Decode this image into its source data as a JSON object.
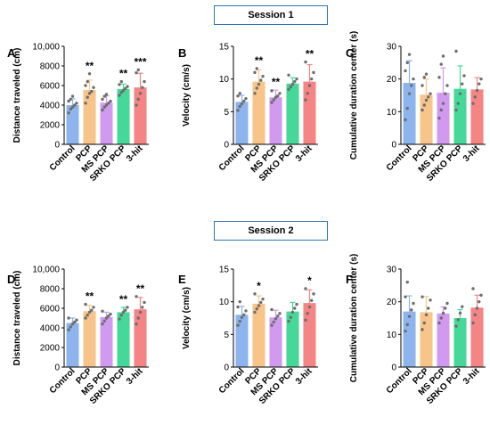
{
  "sessions": {
    "s1": "Session 1",
    "s2": "Session 2"
  },
  "colors": [
    "#8db4ec",
    "#f8c48a",
    "#d19af0",
    "#45d898",
    "#f58585"
  ],
  "chart_data": [
    {
      "id": "A",
      "session": "Session 1",
      "type": "bar",
      "categories": [
        "Control",
        "PCP",
        "MS PCP",
        "SRKO PCP",
        "3-hit"
      ],
      "values": [
        4000,
        5550,
        4250,
        5650,
        5800
      ],
      "errors": [
        650,
        1000,
        700,
        500,
        1450
      ],
      "significance": [
        "",
        "**",
        "",
        "**",
        "***"
      ],
      "points": [
        [
          3200,
          3600,
          3800,
          4000,
          4200,
          4400,
          4600,
          4900
        ],
        [
          4200,
          4800,
          5200,
          5400,
          5800,
          6000,
          6400,
          7200
        ],
        [
          3500,
          3800,
          4000,
          4200,
          4400,
          4600,
          4900,
          5100
        ],
        [
          5000,
          5300,
          5500,
          5700,
          5900,
          6100,
          6400
        ],
        [
          4000,
          4600,
          5200,
          5800,
          6400,
          7300,
          7600
        ]
      ],
      "ylabel": "Distance traveled (cm)",
      "ylim": [
        0,
        10000
      ],
      "yticks": [
        0,
        2000,
        4000,
        6000,
        8000,
        10000
      ],
      "ytick_labels": [
        "0",
        "2000",
        "4000",
        "6000",
        "8000",
        "10,000"
      ]
    },
    {
      "id": "B",
      "session": "Session 1",
      "type": "bar",
      "categories": [
        "Control",
        "PCP",
        "MS PCP",
        "SRKO PCP",
        "3-hit"
      ],
      "values": [
        6.5,
        9.6,
        7.2,
        9.3,
        9.6
      ],
      "errors": [
        1.0,
        1.8,
        1.1,
        0.9,
        2.6
      ],
      "significance": [
        "",
        "**",
        "**",
        "",
        "**"
      ],
      "points": [
        [
          5.2,
          5.8,
          6.2,
          6.6,
          7.0,
          7.4,
          7.8
        ],
        [
          7.8,
          8.6,
          9.2,
          9.8,
          10.4,
          11.0,
          11.6
        ],
        [
          6.4,
          6.8,
          7.2,
          7.4,
          7.8,
          8.2
        ],
        [
          8.4,
          8.8,
          9.2,
          9.6,
          10.0,
          10.6
        ],
        [
          6.8,
          7.8,
          9.0,
          10.0,
          11.0,
          12.6
        ]
      ],
      "ylabel": "Velocity (cm/s)",
      "ylim": [
        0,
        15
      ],
      "yticks": [
        0,
        5,
        10,
        15
      ],
      "ytick_labels": [
        "0",
        "5",
        "10",
        "15"
      ]
    },
    {
      "id": "C",
      "session": "Session 1",
      "type": "bar",
      "categories": [
        "Control",
        "PCP",
        "MS PCP",
        "SRKO PCP",
        "3-hit"
      ],
      "values": [
        18.8,
        15.2,
        15.8,
        17.0,
        16.8
      ],
      "errors": [
        6.8,
        4.8,
        7.6,
        7.0,
        3.6
      ],
      "significance": [
        "",
        "",
        "",
        "",
        ""
      ],
      "points": [
        [
          7.5,
          11.0,
          15.5,
          18.0,
          20.0,
          22.5,
          25.0,
          27.5
        ],
        [
          10.5,
          12.0,
          13.5,
          14.5,
          15.5,
          18.0,
          20.5,
          21.5
        ],
        [
          8.0,
          10.5,
          12.5,
          15.5,
          18.0,
          20.5,
          24.5,
          27.0
        ],
        [
          10.5,
          12.5,
          15.5,
          18.5,
          21.0,
          28.5
        ],
        [
          12.5,
          14.5,
          16.5,
          18.5,
          20.0
        ]
      ],
      "ylabel": "Cumulative duration center (s)",
      "ylim": [
        0,
        30
      ],
      "yticks": [
        0,
        10,
        20,
        30
      ],
      "ytick_labels": [
        "0",
        "10",
        "20",
        "30"
      ]
    },
    {
      "id": "D",
      "session": "Session 2",
      "type": "bar",
      "categories": [
        "Control",
        "PCP",
        "MS PCP",
        "SRKO PCP",
        "3-hit"
      ],
      "values": [
        4500,
        5700,
        5100,
        5600,
        5900
      ],
      "errors": [
        500,
        600,
        500,
        500,
        1200
      ],
      "significance": [
        "",
        "**",
        "",
        "**",
        "**"
      ],
      "points": [
        [
          3800,
          4100,
          4400,
          4600,
          4800,
          5000
        ],
        [
          5000,
          5300,
          5600,
          5800,
          6100,
          6400
        ],
        [
          4400,
          4700,
          5000,
          5200,
          5400,
          5700
        ],
        [
          4900,
          5300,
          5600,
          5800,
          6100
        ],
        [
          4400,
          5000,
          5600,
          6100,
          6600,
          7200
        ]
      ],
      "ylabel": "Distance traveled (cm)",
      "ylim": [
        0,
        10000
      ],
      "yticks": [
        0,
        2000,
        4000,
        6000,
        8000,
        10000
      ],
      "ytick_labels": [
        "0",
        "2000",
        "4000",
        "6000",
        "8000",
        "10,000"
      ]
    },
    {
      "id": "E",
      "session": "Session 2",
      "type": "bar",
      "categories": [
        "Control",
        "PCP",
        "MS PCP",
        "SRKO PCP",
        "3-hit"
      ],
      "values": [
        8.0,
        9.7,
        7.6,
        8.5,
        9.8
      ],
      "errors": [
        1.3,
        1.2,
        1.1,
        1.4,
        2.0
      ],
      "significance": [
        "",
        "*",
        "",
        "",
        "*"
      ],
      "points": [
        [
          6.4,
          7.0,
          7.6,
          8.0,
          8.6,
          9.2,
          10.0
        ],
        [
          8.4,
          8.9,
          9.4,
          9.9,
          10.4,
          11.2
        ],
        [
          6.4,
          6.9,
          7.4,
          7.8,
          8.2,
          8.8
        ],
        [
          7.0,
          7.6,
          8.4,
          9.0,
          9.6
        ],
        [
          7.2,
          8.2,
          9.2,
          10.2,
          11.2,
          12.0
        ]
      ],
      "ylabel": "Velocity (cm/s)",
      "ylim": [
        0,
        15
      ],
      "yticks": [
        0,
        5,
        10,
        15
      ],
      "ytick_labels": [
        "0",
        "5",
        "10",
        "15"
      ]
    },
    {
      "id": "F",
      "session": "Session 2",
      "type": "bar",
      "categories": [
        "Control",
        "PCP",
        "MS PCP",
        "SRKO PCP",
        "3-hit"
      ],
      "values": [
        17.0,
        16.8,
        16.4,
        15.0,
        18.2
      ],
      "errors": [
        4.8,
        4.8,
        2.0,
        2.6,
        3.8
      ],
      "significance": [
        "",
        "",
        "",
        "",
        ""
      ],
      "points": [
        [
          11.0,
          13.0,
          15.5,
          17.5,
          19.5,
          21.5,
          26.0
        ],
        [
          11.5,
          13.5,
          16.0,
          18.0,
          20.5,
          21.5
        ],
        [
          13.5,
          15.0,
          16.5,
          18.0,
          19.5
        ],
        [
          12.5,
          14.5,
          16.5,
          18.5
        ],
        [
          13.5,
          16.0,
          18.0,
          20.0,
          22.0,
          24.0
        ]
      ],
      "ylabel": "Cumulative duration center (s)",
      "ylim": [
        0,
        30
      ],
      "yticks": [
        0,
        10,
        20,
        30
      ],
      "ytick_labels": [
        "0",
        "10",
        "20",
        "30"
      ]
    }
  ]
}
